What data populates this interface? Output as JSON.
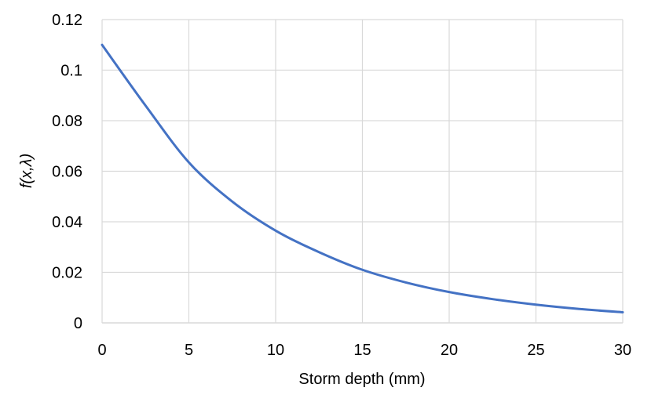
{
  "chart_data": {
    "type": "line",
    "title": "",
    "xlabel": "Storm depth (mm)",
    "ylabel": "f(x,λ)",
    "xlim": [
      0,
      30
    ],
    "ylim": [
      0,
      0.12
    ],
    "x_ticks": [
      0,
      5,
      10,
      15,
      20,
      25,
      30
    ],
    "x_tick_labels": [
      "0",
      "5",
      "10",
      "15",
      "20",
      "25",
      "30"
    ],
    "y_ticks": [
      0,
      0.02,
      0.04,
      0.06,
      0.08,
      0.1,
      0.12
    ],
    "y_tick_labels": [
      "0",
      "0.02",
      "0.04",
      "0.06",
      "0.08",
      "0.1",
      "0.12"
    ],
    "grid": true,
    "legend": "none",
    "series": [
      {
        "color": "#4472C4",
        "x": [
          0,
          2.5,
          5,
          7.5,
          10,
          12.5,
          15,
          17.5,
          20,
          22.5,
          25,
          27.5,
          30
        ],
        "y": [
          0.11,
          0.086,
          0.0635,
          0.048,
          0.0365,
          0.028,
          0.021,
          0.016,
          0.0122,
          0.0094,
          0.0072,
          0.0055,
          0.0042
        ]
      }
    ]
  }
}
